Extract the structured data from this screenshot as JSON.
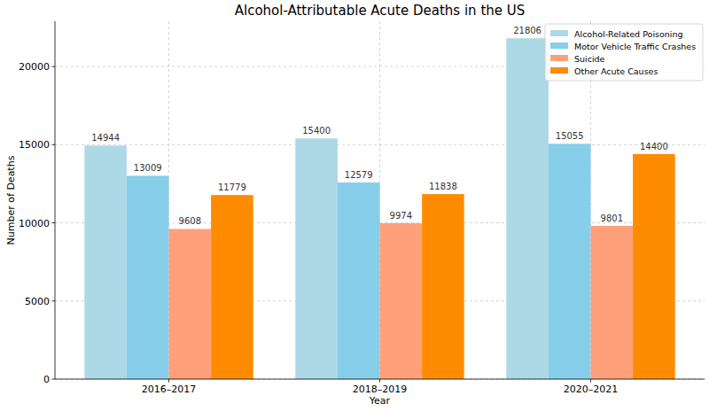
{
  "chart_data": {
    "type": "bar",
    "title": "Alcohol-Attributable Acute Deaths in the US",
    "x_label": "Year",
    "y_label": "Number of Deaths",
    "categories": [
      "2016–2017",
      "2018–2019",
      "2020–2021"
    ],
    "series": [
      {
        "name": "Alcohol-Related Poisoning",
        "color": "#add8e6",
        "values": [
          14944,
          15400,
          21806
        ]
      },
      {
        "name": "Motor Vehicle Traffic Crashes",
        "color": "#87ceeb",
        "values": [
          13009,
          12579,
          15055
        ]
      },
      {
        "name": "Suicide",
        "color": "#ffa07a",
        "values": [
          9608,
          9974,
          9801
        ]
      },
      {
        "name": "Other Acute Causes",
        "color": "#ff8c00",
        "values": [
          11779,
          11838,
          14400
        ]
      }
    ],
    "ylim": [
      0,
      22896
    ],
    "yticks": [
      0,
      5000,
      10000,
      15000,
      20000
    ],
    "grid": true,
    "legend": "upper right",
    "data_labels": true
  }
}
